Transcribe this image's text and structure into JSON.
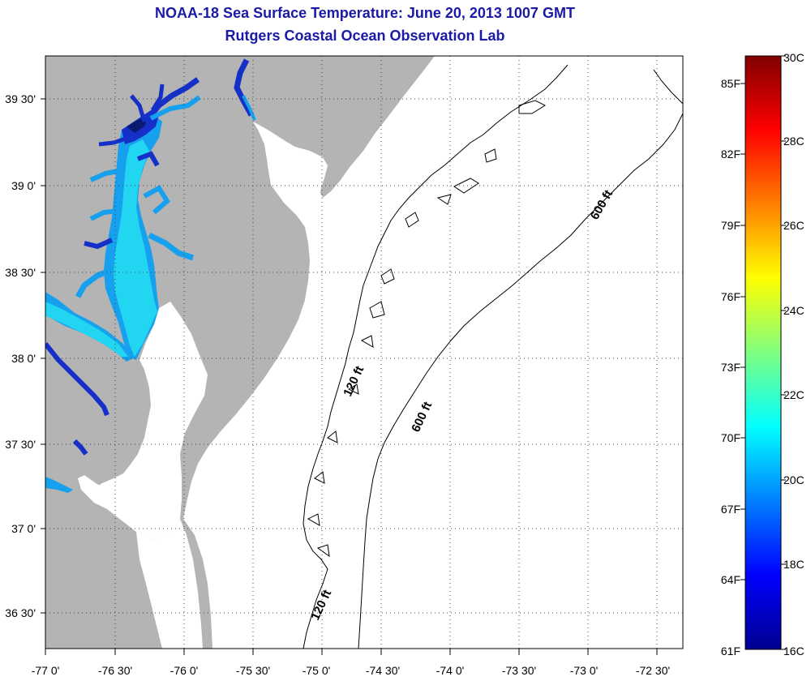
{
  "title": {
    "line1": "NOAA-18 Sea Surface Temperature:  June 20, 2013 1007 GMT",
    "line2": "Rutgers Coastal Ocean Observation Lab"
  },
  "map": {
    "lon_labels": [
      "-77 0'",
      "-76 30'",
      "-76 0'",
      "-75 30'",
      "-75 0'",
      "-74 30'",
      "-74 0'",
      "-73 30'",
      "-73 0'",
      "-72 30'"
    ],
    "lat_labels": [
      "39 30'",
      "39 0'",
      "38 30'",
      "38 0'",
      "37 30'",
      "37 0'",
      "36 30'"
    ],
    "isobaths": [
      {
        "label": "120 ft"
      },
      {
        "label": "600 ft"
      },
      {
        "label": "600 ft"
      },
      {
        "label": "120 ft"
      }
    ],
    "colors": {
      "land": "#b4b4b4",
      "water_nodata": "#ffffff",
      "sst_light": "#22d6f2",
      "sst_mid": "#16a0ee",
      "sst_deep": "#1430c8",
      "sst_darkest": "#0a1a6e"
    }
  },
  "colorbar": {
    "fahrenheit_labels": [
      "85F",
      "82F",
      "79F",
      "76F",
      "73F",
      "70F",
      "67F",
      "64F",
      "61F"
    ],
    "celsius_labels": [
      "30C",
      "28C",
      "26C",
      "24C",
      "22C",
      "20C",
      "18C",
      "16C"
    ],
    "colormap": "jet",
    "range_c": [
      16,
      30
    ],
    "range_f": [
      61,
      86
    ]
  }
}
